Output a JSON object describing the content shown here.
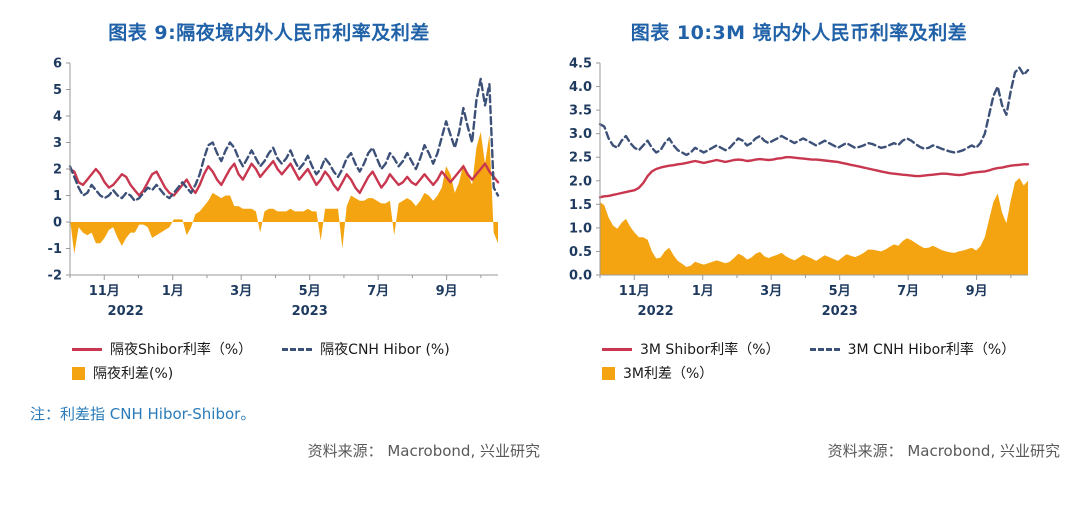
{
  "page": {
    "note": "注：利差指 CNH Hibor-Shibor。",
    "source_left": "资料来源： Macrobond, 兴业研究",
    "source_right": "资料来源： Macrobond, 兴业研究"
  },
  "colors": {
    "title": "#2061A8",
    "axis_label": "#1F3A5F",
    "axis_line": "#9A9A9A",
    "shibor": "#C8374F",
    "cnh": "#3D5178",
    "spread": "#F4A411",
    "note": "#2B7BB9",
    "source": "#595959"
  },
  "chart_data": [
    {
      "type": "line+area",
      "title": "图表 9:隔夜境内外人民币利率及利差",
      "xlabel": "",
      "ylabel": "",
      "ylim": [
        -2,
        6
      ],
      "yticks": [
        -2,
        -1,
        0,
        1,
        2,
        3,
        4,
        5,
        6
      ],
      "ytick_decimals": 0,
      "xticks": [
        {
          "pos": 0.08,
          "label": "11月"
        },
        {
          "pos": 0.24,
          "label": "1月"
        },
        {
          "pos": 0.4,
          "label": "3月"
        },
        {
          "pos": 0.56,
          "label": "5月"
        },
        {
          "pos": 0.72,
          "label": "7月"
        },
        {
          "pos": 0.88,
          "label": "9月"
        }
      ],
      "x_minor_ticks": [
        0.0,
        0.16,
        0.32,
        0.48,
        0.64,
        0.8,
        0.96
      ],
      "year_ticks": [
        {
          "pos": 0.13,
          "label": "2022"
        },
        {
          "pos": 0.56,
          "label": "2023"
        }
      ],
      "legend_rows": [
        [
          {
            "label": "隔夜Shibor利率（%）",
            "marker": "line-solid",
            "color": "#C8374F"
          },
          {
            "label": "隔夜CNH Hibor (%)",
            "marker": "line-dashed",
            "color": "#3D5178"
          }
        ],
        [
          {
            "label": "隔夜利差(%)",
            "marker": "square",
            "color": "#F4A411"
          }
        ]
      ],
      "series": [
        {
          "name": "隔夜利差(%)",
          "type": "area",
          "color": "#F4A411",
          "values": [
            0.1,
            -1.2,
            -0.2,
            -0.4,
            -0.5,
            -0.4,
            -0.8,
            -0.8,
            -0.6,
            -0.3,
            -0.2,
            -0.6,
            -0.9,
            -0.6,
            -0.4,
            -0.4,
            -0.1,
            -0.1,
            -0.2,
            -0.6,
            -0.5,
            -0.4,
            -0.3,
            -0.2,
            0.1,
            0.1,
            0.1,
            -0.5,
            -0.2,
            0.3,
            0.4,
            0.6,
            0.8,
            1.1,
            1.0,
            0.9,
            1.0,
            1.0,
            0.6,
            0.6,
            0.5,
            0.5,
            0.5,
            0.4,
            -0.4,
            0.4,
            0.5,
            0.5,
            0.4,
            0.4,
            0.4,
            0.5,
            0.4,
            0.4,
            0.4,
            0.5,
            0.4,
            0.4,
            -0.7,
            0.5,
            0.5,
            0.5,
            0.5,
            -1.0,
            0.6,
            1.0,
            0.9,
            0.8,
            0.8,
            0.9,
            0.9,
            0.8,
            0.7,
            0.7,
            0.8,
            -0.5,
            0.7,
            0.8,
            0.9,
            0.8,
            0.6,
            0.8,
            1.1,
            1.0,
            0.8,
            1.0,
            1.3,
            2.1,
            1.8,
            1.1,
            1.5,
            2.2,
            1.8,
            1.4,
            2.8,
            3.4,
            2.2,
            3.3,
            -0.4,
            -0.8
          ]
        },
        {
          "name": "隔夜Shibor利率（%）",
          "type": "line",
          "color": "#C8374F",
          "values": [
            2.0,
            1.9,
            1.5,
            1.4,
            1.6,
            1.8,
            2.0,
            1.8,
            1.5,
            1.3,
            1.4,
            1.6,
            1.8,
            1.7,
            1.4,
            1.2,
            1.0,
            1.2,
            1.5,
            1.8,
            1.9,
            1.6,
            1.3,
            1.1,
            1.0,
            1.2,
            1.4,
            1.6,
            1.3,
            1.1,
            1.4,
            1.8,
            2.1,
            1.9,
            1.6,
            1.4,
            1.7,
            2.0,
            2.2,
            1.8,
            1.6,
            1.9,
            2.2,
            2.0,
            1.7,
            1.9,
            2.1,
            2.3,
            2.0,
            1.8,
            2.0,
            2.2,
            1.9,
            1.6,
            1.8,
            2.0,
            1.7,
            1.4,
            1.6,
            1.9,
            1.7,
            1.4,
            1.2,
            1.5,
            1.8,
            1.6,
            1.3,
            1.1,
            1.4,
            1.7,
            1.9,
            1.6,
            1.3,
            1.5,
            1.8,
            1.6,
            1.4,
            1.5,
            1.7,
            1.5,
            1.4,
            1.6,
            1.8,
            1.6,
            1.4,
            1.6,
            1.9,
            1.7,
            1.5,
            1.7,
            1.9,
            2.1,
            1.8,
            1.6,
            1.8,
            2.0,
            2.2,
            1.9,
            1.7,
            1.5
          ]
        },
        {
          "name": "隔夜CNH Hibor (%)",
          "type": "dashed",
          "color": "#3D5178",
          "values": [
            2.1,
            1.7,
            1.3,
            1.0,
            1.1,
            1.4,
            1.2,
            1.0,
            0.9,
            1.0,
            1.2,
            1.0,
            0.9,
            1.1,
            1.0,
            0.8,
            0.9,
            1.1,
            1.3,
            1.2,
            1.4,
            1.2,
            1.0,
            0.9,
            1.1,
            1.3,
            1.5,
            1.3,
            1.1,
            1.4,
            1.8,
            2.4,
            2.9,
            3.0,
            2.6,
            2.3,
            2.7,
            3.0,
            2.8,
            2.4,
            2.1,
            2.4,
            2.7,
            2.4,
            2.1,
            2.3,
            2.6,
            2.8,
            2.4,
            2.2,
            2.4,
            2.7,
            2.3,
            2.0,
            2.2,
            2.5,
            2.1,
            1.8,
            2.0,
            2.4,
            2.2,
            1.9,
            1.7,
            2.0,
            2.4,
            2.6,
            2.2,
            1.9,
            2.2,
            2.6,
            2.8,
            2.4,
            2.0,
            2.2,
            2.6,
            2.4,
            2.1,
            2.3,
            2.6,
            2.3,
            2.0,
            2.4,
            2.9,
            2.6,
            2.2,
            2.6,
            3.2,
            3.8,
            3.3,
            2.8,
            3.4,
            4.3,
            3.6,
            3.0,
            4.6,
            5.4,
            4.4,
            5.2,
            1.3,
            1.0
          ]
        }
      ]
    },
    {
      "type": "line+area",
      "title": "图表 10:3M 境内外人民币利率及利差",
      "xlabel": "",
      "ylabel": "",
      "ylim": [
        0,
        4.5
      ],
      "yticks": [
        0,
        0.5,
        1.0,
        1.5,
        2.0,
        2.5,
        3.0,
        3.5,
        4.0,
        4.5
      ],
      "ytick_decimals": 1,
      "xticks": [
        {
          "pos": 0.08,
          "label": "11月"
        },
        {
          "pos": 0.24,
          "label": "1月"
        },
        {
          "pos": 0.4,
          "label": "3月"
        },
        {
          "pos": 0.56,
          "label": "5月"
        },
        {
          "pos": 0.72,
          "label": "7月"
        },
        {
          "pos": 0.88,
          "label": "9月"
        }
      ],
      "x_minor_ticks": [
        0.0,
        0.16,
        0.32,
        0.48,
        0.64,
        0.8,
        0.96
      ],
      "year_ticks": [
        {
          "pos": 0.13,
          "label": "2022"
        },
        {
          "pos": 0.56,
          "label": "2023"
        }
      ],
      "legend_rows": [
        [
          {
            "label": "3M Shibor利率（%）",
            "marker": "line-solid",
            "color": "#C8374F"
          },
          {
            "label": "3M CNH Hibor利率（%）",
            "marker": "line-dashed",
            "color": "#3D5178"
          }
        ],
        [
          {
            "label": "3M利差（%）",
            "marker": "square",
            "color": "#F4A411"
          }
        ]
      ],
      "series": [
        {
          "name": "3M利差（%）",
          "type": "area",
          "color": "#F4A411",
          "values": [
            1.55,
            1.48,
            1.22,
            1.05,
            0.98,
            1.11,
            1.19,
            1.02,
            0.9,
            0.8,
            0.8,
            0.75,
            0.5,
            0.35,
            0.37,
            0.5,
            0.58,
            0.42,
            0.3,
            0.24,
            0.17,
            0.2,
            0.28,
            0.25,
            0.22,
            0.25,
            0.28,
            0.31,
            0.28,
            0.25,
            0.28,
            0.36,
            0.45,
            0.41,
            0.33,
            0.37,
            0.45,
            0.49,
            0.4,
            0.36,
            0.4,
            0.43,
            0.47,
            0.4,
            0.35,
            0.31,
            0.37,
            0.43,
            0.39,
            0.35,
            0.3,
            0.36,
            0.42,
            0.38,
            0.34,
            0.3,
            0.37,
            0.44,
            0.41,
            0.38,
            0.42,
            0.47,
            0.54,
            0.54,
            0.52,
            0.5,
            0.54,
            0.6,
            0.65,
            0.62,
            0.72,
            0.78,
            0.74,
            0.68,
            0.62,
            0.57,
            0.58,
            0.62,
            0.58,
            0.53,
            0.5,
            0.48,
            0.47,
            0.5,
            0.52,
            0.55,
            0.58,
            0.52,
            0.61,
            0.8,
            1.18,
            1.55,
            1.73,
            1.32,
            1.1,
            1.58,
            1.97,
            2.06,
            1.9,
            2.0
          ]
        },
        {
          "name": "3M Shibor利率（%）",
          "type": "line",
          "color": "#C8374F",
          "values": [
            1.65,
            1.67,
            1.68,
            1.7,
            1.72,
            1.74,
            1.76,
            1.78,
            1.8,
            1.85,
            1.95,
            2.1,
            2.2,
            2.25,
            2.28,
            2.3,
            2.32,
            2.33,
            2.35,
            2.36,
            2.38,
            2.4,
            2.42,
            2.4,
            2.38,
            2.4,
            2.42,
            2.44,
            2.42,
            2.4,
            2.42,
            2.44,
            2.45,
            2.44,
            2.42,
            2.43,
            2.45,
            2.46,
            2.45,
            2.44,
            2.45,
            2.47,
            2.48,
            2.5,
            2.5,
            2.49,
            2.48,
            2.47,
            2.46,
            2.45,
            2.45,
            2.44,
            2.43,
            2.42,
            2.41,
            2.4,
            2.38,
            2.36,
            2.34,
            2.32,
            2.3,
            2.28,
            2.26,
            2.24,
            2.22,
            2.2,
            2.18,
            2.16,
            2.15,
            2.14,
            2.13,
            2.12,
            2.11,
            2.1,
            2.1,
            2.11,
            2.12,
            2.13,
            2.14,
            2.15,
            2.15,
            2.14,
            2.13,
            2.12,
            2.13,
            2.15,
            2.17,
            2.18,
            2.19,
            2.2,
            2.22,
            2.25,
            2.27,
            2.28,
            2.3,
            2.32,
            2.33,
            2.34,
            2.35,
            2.35
          ]
        },
        {
          "name": "3M CNH Hibor利率（%）",
          "type": "dashed",
          "color": "#3D5178",
          "values": [
            3.2,
            3.15,
            2.9,
            2.75,
            2.7,
            2.85,
            2.95,
            2.8,
            2.7,
            2.65,
            2.75,
            2.85,
            2.7,
            2.6,
            2.65,
            2.8,
            2.9,
            2.75,
            2.65,
            2.6,
            2.55,
            2.6,
            2.7,
            2.65,
            2.6,
            2.65,
            2.7,
            2.75,
            2.7,
            2.65,
            2.7,
            2.8,
            2.9,
            2.85,
            2.75,
            2.8,
            2.9,
            2.95,
            2.85,
            2.8,
            2.85,
            2.9,
            2.95,
            2.9,
            2.85,
            2.8,
            2.85,
            2.9,
            2.85,
            2.8,
            2.75,
            2.8,
            2.85,
            2.8,
            2.75,
            2.7,
            2.75,
            2.8,
            2.75,
            2.7,
            2.72,
            2.75,
            2.8,
            2.78,
            2.74,
            2.7,
            2.72,
            2.76,
            2.8,
            2.76,
            2.85,
            2.9,
            2.85,
            2.78,
            2.72,
            2.68,
            2.7,
            2.75,
            2.72,
            2.68,
            2.65,
            2.62,
            2.6,
            2.62,
            2.65,
            2.7,
            2.75,
            2.7,
            2.8,
            3.0,
            3.4,
            3.8,
            4.0,
            3.6,
            3.4,
            3.9,
            4.3,
            4.4,
            4.25,
            4.35
          ]
        }
      ]
    }
  ]
}
